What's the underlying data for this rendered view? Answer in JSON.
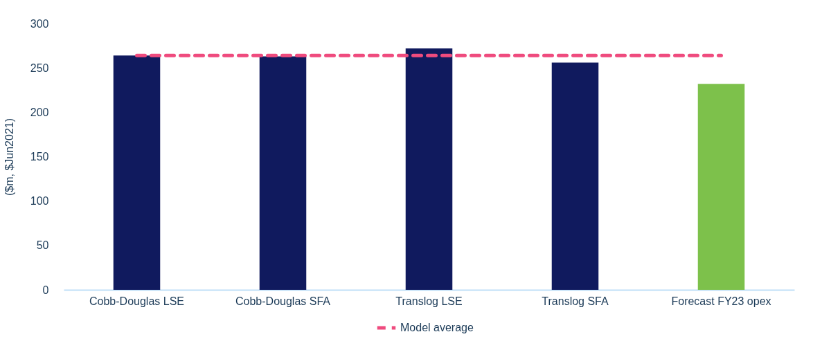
{
  "chart_data": {
    "type": "bar",
    "ylabel": "($m, $Jun2021)",
    "categories": [
      "Cobb-Douglas LSE",
      "Cobb-Douglas SFA",
      "Translog LSE",
      "Translog SFA",
      "Forecast FY23 opex"
    ],
    "series": [
      {
        "values": [
          264,
          263,
          272,
          256,
          232
        ],
        "colors": [
          "#101a5e",
          "#101a5e",
          "#101a5e",
          "#101a5e",
          "#7dc14b"
        ]
      },
      {
        "type": "line",
        "name": "Model average",
        "color": "#ef4b7e",
        "line_style": "dashed",
        "values": [
          264,
          264,
          264,
          264,
          264
        ]
      }
    ],
    "ylim": [
      0,
      300
    ],
    "yticks": [
      0,
      50,
      100,
      150,
      200,
      250,
      300
    ],
    "grid": false,
    "legend": "bottom"
  }
}
